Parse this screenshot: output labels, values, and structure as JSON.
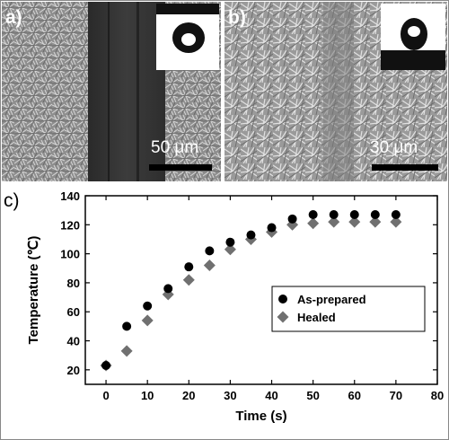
{
  "figure": {
    "panel_a": {
      "letter": "a)",
      "scale_bar": "50 μm"
    },
    "panel_b": {
      "letter": "b)",
      "scale_bar": "30 μm"
    },
    "panel_c": {
      "letter": "c)"
    }
  },
  "chart_data": {
    "type": "scatter",
    "title": "",
    "xlabel": "Time (s)",
    "ylabel": "Temperature (℃)",
    "xlim": [
      -5,
      80
    ],
    "ylim": [
      10,
      140
    ],
    "xticks": [
      0,
      10,
      20,
      30,
      40,
      50,
      60,
      70,
      80
    ],
    "yticks": [
      20,
      40,
      60,
      80,
      100,
      120,
      140
    ],
    "legend_position": "center-right",
    "series": [
      {
        "name": "As-prepared",
        "marker": "circle",
        "color": "#000000",
        "x": [
          0,
          5,
          10,
          15,
          20,
          25,
          30,
          35,
          40,
          45,
          50,
          55,
          60,
          65,
          70
        ],
        "y": [
          23,
          50,
          64,
          76,
          91,
          102,
          108,
          113,
          118,
          124,
          127,
          127,
          127,
          127,
          127
        ]
      },
      {
        "name": "Healed",
        "marker": "diamond",
        "color": "#707070",
        "x": [
          0,
          5,
          10,
          15,
          20,
          25,
          30,
          35,
          40,
          45,
          50,
          55,
          60,
          65,
          70
        ],
        "y": [
          23,
          33,
          54,
          72,
          82,
          92,
          103,
          110,
          115,
          120,
          121,
          122,
          122,
          122,
          122
        ]
      }
    ]
  }
}
